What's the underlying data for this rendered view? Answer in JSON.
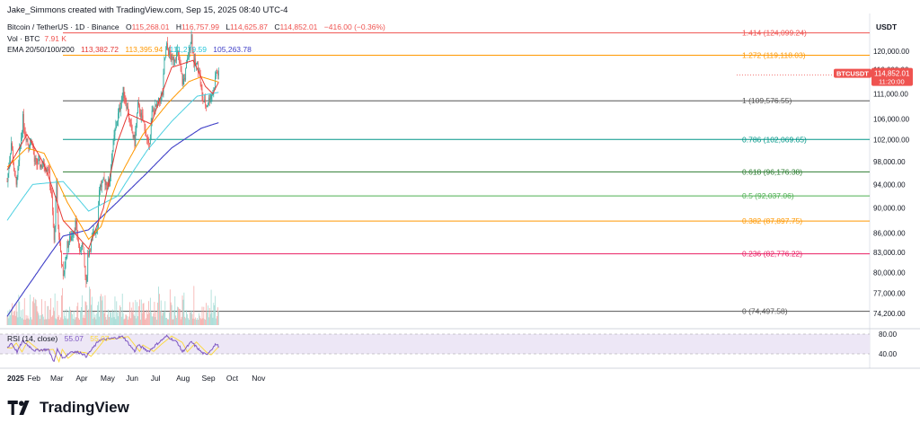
{
  "header": {
    "created_by": "Jake_Simmons created with TradingView.com, Sep 15, 2025 08:40 UTC-4"
  },
  "legend": {
    "symbol": "Bitcoin / TetherUS · 1D · Binance",
    "o_label": "O",
    "o": "115,268.01",
    "h_label": "H",
    "h": "116,757.99",
    "l_label": "L",
    "l": "114,625.87",
    "c_label": "C",
    "c": "114,852.01",
    "change": "−416.00 (−0.36%)",
    "vol_label": "Vol · BTC",
    "vol": "7.91 K",
    "ema_label": "EMA 20/50/100/200",
    "ema20": "113,382.72",
    "ema50": "113,395.94",
    "ema100": "111,279.59",
    "ema200": "105,263.78",
    "rsi_label": "RSI (14, close)",
    "rsi_value": "55.07",
    "rsi_extra": "55.07"
  },
  "colors": {
    "up": "#26a69a",
    "down": "#ef5350",
    "ema20": "#e53935",
    "ema50": "#ff9800",
    "ema100": "#4dd0e1",
    "ema200": "#3f3fc7",
    "rsi": "#7e57c2",
    "rsi_ma": "#fdd835"
  },
  "price_axis": {
    "currency": "USDT",
    "ticks": [
      "120,000.00",
      "116,000.00",
      "111,000.00",
      "106,000.00",
      "102,000.00",
      "98,000.00",
      "94,000.00",
      "90,000.00",
      "86,000.00",
      "83,000.00",
      "80,000.00",
      "77,000.00",
      "74,200.00"
    ],
    "current_symbol": "BTCUSDT",
    "current_price": "114,852.01",
    "countdown": "11:20:00"
  },
  "rsi_axis": {
    "ticks": [
      "80.00",
      "40.00"
    ]
  },
  "time_axis": {
    "labels": [
      "2025",
      "Feb",
      "Mar",
      "Apr",
      "May",
      "Jun",
      "Jul",
      "Aug",
      "Sep",
      "Oct",
      "Nov"
    ]
  },
  "chart_data": {
    "type": "candlestick",
    "symbol": "BTCUSDT",
    "timeframe": "1D",
    "fib_levels": [
      {
        "ratio": "1.414",
        "price": "124,099.24",
        "label": "1.414 (124,099.24)",
        "color": "#ef5350"
      },
      {
        "ratio": "1.272",
        "price": "119,118.03",
        "label": "1.272 (119,118.03)",
        "color": "#ff9800"
      },
      {
        "ratio": "1",
        "price": "109,576.55",
        "label": "1 (109,576.55)",
        "color": "#555555"
      },
      {
        "ratio": "0.786",
        "price": "102,069.65",
        "label": "0.786 (102,069.65)",
        "color": "#009688"
      },
      {
        "ratio": "0.618",
        "price": "96,176.38",
        "label": "0.618 (96,176.38)",
        "color": "#2e7d32"
      },
      {
        "ratio": "0.5",
        "price": "92,037.06",
        "label": "0.5 (92,037.06)",
        "color": "#4caf50"
      },
      {
        "ratio": "0.382",
        "price": "87,897.75",
        "label": "0.382 (87,897.75)",
        "color": "#ff9800"
      },
      {
        "ratio": "0.236",
        "price": "82,776.22",
        "label": "0.236 (82,776.22)",
        "color": "#e91e63"
      },
      {
        "ratio": "0",
        "price": "74,497.58",
        "label": "0 (74,497.58)",
        "color": "#555555"
      }
    ],
    "close_path": [
      [
        "2025-01-01",
        94500
      ],
      [
        "2025-01-06",
        101500
      ],
      [
        "2025-01-10",
        95000
      ],
      [
        "2025-01-13",
        94500
      ],
      [
        "2025-01-20",
        106000
      ],
      [
        "2025-01-22",
        104000
      ],
      [
        "2025-01-27",
        101000
      ],
      [
        "2025-01-31",
        102000
      ],
      [
        "2025-02-03",
        98000
      ],
      [
        "2025-02-10",
        97500
      ],
      [
        "2025-02-20",
        97000
      ],
      [
        "2025-02-24",
        91500
      ],
      [
        "2025-02-27",
        84500
      ],
      [
        "2025-03-02",
        94000
      ],
      [
        "2025-03-04",
        87000
      ],
      [
        "2025-03-10",
        79000
      ],
      [
        "2025-03-15",
        84000
      ],
      [
        "2025-03-20",
        85500
      ],
      [
        "2025-03-25",
        87500
      ],
      [
        "2025-03-31",
        82500
      ],
      [
        "2025-04-02",
        85000
      ],
      [
        "2025-04-07",
        78000
      ],
      [
        "2025-04-09",
        82500
      ],
      [
        "2025-04-14",
        85000
      ],
      [
        "2025-04-21",
        87500
      ],
      [
        "2025-04-23",
        93500
      ],
      [
        "2025-04-30",
        94500
      ],
      [
        "2025-05-05",
        94000
      ],
      [
        "2025-05-08",
        99000
      ],
      [
        "2025-05-12",
        103500
      ],
      [
        "2025-05-22",
        111500
      ],
      [
        "2025-05-26",
        109000
      ],
      [
        "2025-05-31",
        104500
      ],
      [
        "2025-06-05",
        101500
      ],
      [
        "2025-06-09",
        108500
      ],
      [
        "2025-06-17",
        104500
      ],
      [
        "2025-06-22",
        100500
      ],
      [
        "2025-06-26",
        107000
      ],
      [
        "2025-07-02",
        108500
      ],
      [
        "2025-07-09",
        111000
      ],
      [
        "2025-07-11",
        117500
      ],
      [
        "2025-07-14",
        121000
      ],
      [
        "2025-07-20",
        118000
      ],
      [
        "2025-07-27",
        119500
      ],
      [
        "2025-08-02",
        113500
      ],
      [
        "2025-08-05",
        114500
      ],
      [
        "2025-08-10",
        120000
      ],
      [
        "2025-08-13",
        123500
      ],
      [
        "2025-08-16",
        117500
      ],
      [
        "2025-08-22",
        116500
      ],
      [
        "2025-08-26",
        110000
      ],
      [
        "2025-08-31",
        108500
      ],
      [
        "2025-09-01",
        109000
      ],
      [
        "2025-09-05",
        110500
      ],
      [
        "2025-09-09",
        111500
      ],
      [
        "2025-09-12",
        115500
      ],
      [
        "2025-09-15",
        114852
      ]
    ],
    "ema200_path": [
      [
        "2025-01-01",
        73800
      ],
      [
        "2025-02-01",
        79000
      ],
      [
        "2025-03-10",
        85500
      ],
      [
        "2025-04-10",
        86500
      ],
      [
        "2025-05-15",
        91000
      ],
      [
        "2025-06-20",
        96000
      ],
      [
        "2025-07-20",
        100500
      ],
      [
        "2025-08-25",
        104200
      ],
      [
        "2025-09-15",
        105264
      ]
    ],
    "ema100_path": [
      [
        "2025-01-01",
        88000
      ],
      [
        "2025-02-01",
        94000
      ],
      [
        "2025-03-10",
        94500
      ],
      [
        "2025-04-10",
        89500
      ],
      [
        "2025-05-15",
        92000
      ],
      [
        "2025-06-20",
        100000
      ],
      [
        "2025-07-20",
        105500
      ],
      [
        "2025-08-20",
        110500
      ],
      [
        "2025-09-15",
        111280
      ]
    ],
    "ema50_path": [
      [
        "2025-01-01",
        97000
      ],
      [
        "2025-01-25",
        100500
      ],
      [
        "2025-02-15",
        99500
      ],
      [
        "2025-03-15",
        91000
      ],
      [
        "2025-04-10",
        85000
      ],
      [
        "2025-04-25",
        87000
      ],
      [
        "2025-05-15",
        94500
      ],
      [
        "2025-06-15",
        103000
      ],
      [
        "2025-07-15",
        109000
      ],
      [
        "2025-08-10",
        113500
      ],
      [
        "2025-08-25",
        114500
      ],
      [
        "2025-09-15",
        113396
      ]
    ],
    "ema20_path": [
      [
        "2025-01-01",
        96500
      ],
      [
        "2025-01-25",
        103000
      ],
      [
        "2025-02-15",
        97500
      ],
      [
        "2025-03-10",
        88000
      ],
      [
        "2025-04-10",
        83500
      ],
      [
        "2025-04-28",
        90000
      ],
      [
        "2025-05-15",
        101500
      ],
      [
        "2025-05-28",
        107000
      ],
      [
        "2025-06-25",
        105000
      ],
      [
        "2025-07-20",
        116500
      ],
      [
        "2025-08-15",
        118000
      ],
      [
        "2025-08-30",
        112500
      ],
      [
        "2025-09-08",
        111000
      ],
      [
        "2025-09-15",
        113383
      ]
    ],
    "rsi_path": [
      [
        "2025-01-01",
        52
      ],
      [
        "2025-01-06",
        62
      ],
      [
        "2025-01-13",
        44
      ],
      [
        "2025-01-20",
        66
      ],
      [
        "2025-02-03",
        47
      ],
      [
        "2025-02-20",
        49
      ],
      [
        "2025-02-27",
        24
      ],
      [
        "2025-03-03",
        49
      ],
      [
        "2025-03-10",
        31
      ],
      [
        "2025-03-20",
        45
      ],
      [
        "2025-04-01",
        42
      ],
      [
        "2025-04-07",
        35
      ],
      [
        "2025-04-14",
        49
      ],
      [
        "2025-04-23",
        68
      ],
      [
        "2025-05-08",
        71
      ],
      [
        "2025-05-22",
        75
      ],
      [
        "2025-06-05",
        45
      ],
      [
        "2025-06-09",
        58
      ],
      [
        "2025-06-22",
        45
      ],
      [
        "2025-07-02",
        60
      ],
      [
        "2025-07-14",
        76
      ],
      [
        "2025-07-27",
        63
      ],
      [
        "2025-08-02",
        44
      ],
      [
        "2025-08-13",
        64
      ],
      [
        "2025-08-26",
        42
      ],
      [
        "2025-08-31",
        38
      ],
      [
        "2025-09-05",
        47
      ],
      [
        "2025-09-12",
        60
      ],
      [
        "2025-09-15",
        55
      ]
    ]
  }
}
